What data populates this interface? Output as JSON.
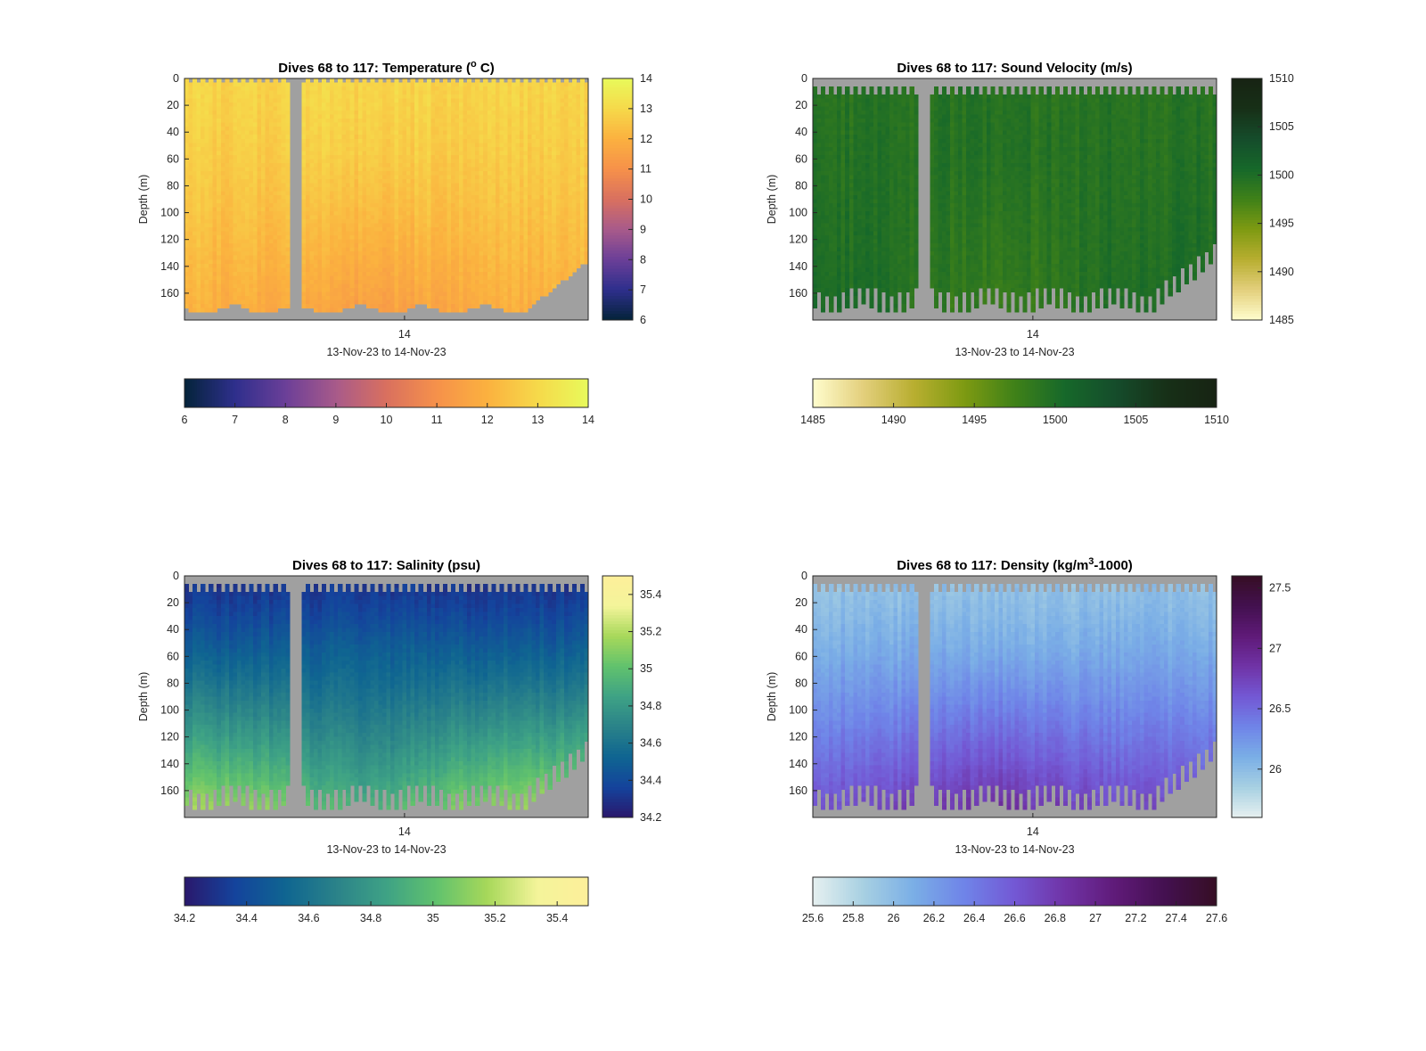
{
  "figure": {
    "colors": {
      "background": "#ffffff",
      "no_data": "#a0a0a0",
      "axes": "#262626"
    }
  },
  "chart_data": [
    {
      "type": "heatmap",
      "title": "Dives 68 to 117: Temperature (",
      "title_sup": "o",
      "title_end": " C)",
      "ylabel": "Depth (m)",
      "xlabel": "13-Nov-23 to 14-Nov-23",
      "x_tick_labels": [
        "14"
      ],
      "y_tick_labels": [
        "0",
        "20",
        "40",
        "60",
        "80",
        "100",
        "120",
        "140",
        "160"
      ],
      "ylim": [
        0,
        180
      ],
      "y_reversed": true,
      "colorbar": {
        "min": 6,
        "max": 14,
        "side_ticks": [
          "6",
          "7",
          "8",
          "9",
          "10",
          "11",
          "12",
          "13",
          "14"
        ],
        "horizontal_ticks": [
          "6",
          "7",
          "8",
          "9",
          "10",
          "11",
          "12",
          "13",
          "14"
        ]
      },
      "colormap": "thermal",
      "profile": {
        "surface": 12.9,
        "bottom": 11.9,
        "trough": 11.3
      },
      "surface_gap": "smooth"
    },
    {
      "type": "heatmap",
      "title": "Dives 68 to 117: Sound Velocity (m/s)",
      "ylabel": "Depth (m)",
      "xlabel": "13-Nov-23 to 14-Nov-23",
      "x_tick_labels": [
        "14"
      ],
      "y_tick_labels": [
        "0",
        "20",
        "40",
        "60",
        "80",
        "100",
        "120",
        "140",
        "160"
      ],
      "ylim": [
        0,
        180
      ],
      "y_reversed": true,
      "colorbar": {
        "min": 1485,
        "max": 1510,
        "side_ticks": [
          "1485",
          "1490",
          "1495",
          "1500",
          "1505",
          "1510"
        ],
        "horizontal_ticks": [
          "1485",
          "1490",
          "1495",
          "1500",
          "1505",
          "1510"
        ]
      },
      "colormap": "speed",
      "profile": {
        "surface": 1499.2,
        "bottom": 1500.2,
        "trough": 1497.6
      },
      "surface_gap": "comb"
    },
    {
      "type": "heatmap",
      "title": "Dives 68 to 117: Salinity (psu)",
      "ylabel": "Depth (m)",
      "xlabel": "13-Nov-23 to 14-Nov-23",
      "x_tick_labels": [
        "14"
      ],
      "y_tick_labels": [
        "0",
        "20",
        "40",
        "60",
        "80",
        "100",
        "120",
        "140",
        "160"
      ],
      "ylim": [
        0,
        180
      ],
      "y_reversed": true,
      "colorbar": {
        "min": 34.2,
        "max": 35.5,
        "side_ticks": [
          "34.2",
          "34.4",
          "34.6",
          "34.8",
          "35",
          "35.2",
          "35.4"
        ],
        "horizontal_ticks": [
          "34.2",
          "34.4",
          "34.6",
          "34.8",
          "35",
          "35.2",
          "35.4"
        ]
      },
      "colormap": "haline",
      "profile": {
        "surface": 34.3,
        "bottom": 35.2,
        "trough": 34.9
      },
      "surface_gap": "comb"
    },
    {
      "type": "heatmap",
      "title": "Dives 68 to 117: Density (kg/m",
      "title_sup": "3",
      "title_end": "-1000)",
      "ylabel": "Depth (m)",
      "xlabel": "13-Nov-23 to 14-Nov-23",
      "x_tick_labels": [
        "14"
      ],
      "y_tick_labels": [
        "0",
        "20",
        "40",
        "60",
        "80",
        "100",
        "120",
        "140",
        "160"
      ],
      "ylim": [
        0,
        180
      ],
      "y_reversed": true,
      "colorbar": {
        "min": 25.6,
        "max": 27.6,
        "side_ticks": [
          "26",
          "26.5",
          "27",
          "27.5"
        ],
        "horizontal_ticks": [
          "25.6",
          "25.8",
          "26",
          "26.2",
          "26.4",
          "26.6",
          "26.8",
          "27",
          "27.2",
          "27.4",
          "27.6"
        ]
      },
      "colormap": "dense",
      "profile": {
        "surface": 25.95,
        "bottom": 26.7,
        "trough": 26.95
      },
      "surface_gap": "comb"
    }
  ]
}
